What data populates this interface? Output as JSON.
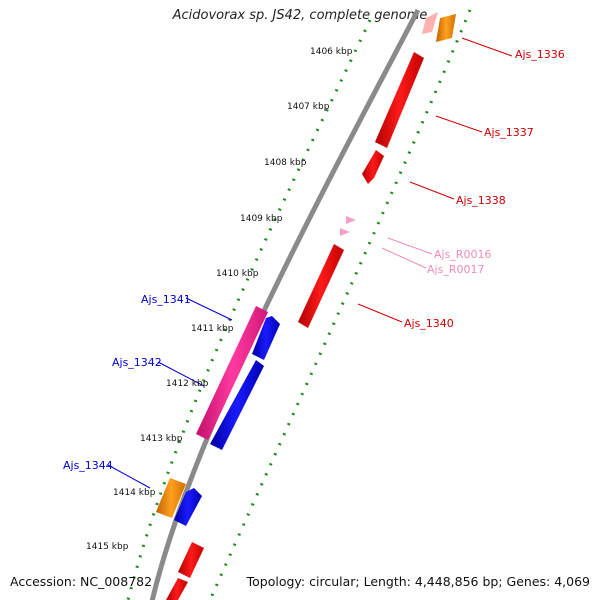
{
  "title": "Acidovorax sp. JS42, complete genome",
  "footer": {
    "accession": "Accession: NC_008782",
    "summary": "Topology: circular; Length: 4,448,856 bp; Genes: 4,069"
  },
  "colors": {
    "backbone": "#8a8a8a",
    "tick": "#1e8a1e",
    "cds_forward": "#ee0000",
    "cds_reverse": "#0000dd",
    "rna": "#f4a0c8",
    "pseudo": "#ff8c00",
    "misc_pink": "#f0208a",
    "label_forward": "#cc0000",
    "label_reverse": "#0000cc",
    "label_rna": "#f08cb8"
  },
  "scale_labels": [
    "1406 kbp",
    "1407 kbp",
    "1408 kbp",
    "1409 kbp",
    "1410 kbp",
    "1411 kbp",
    "1412 kbp",
    "1413 kbp",
    "1414 kbp",
    "1415 kbp"
  ],
  "gene_labels": {
    "ajs_1336": "Ajs_1336",
    "ajs_1337": "Ajs_1337",
    "ajs_1338": "Ajs_1338",
    "ajs_r0016": "Ajs_R0016",
    "ajs_r0017": "Ajs_R0017",
    "ajs_1340": "Ajs_1340",
    "ajs_1341": "Ajs_1341",
    "ajs_1342": "Ajs_1342",
    "ajs_1344": "Ajs_1344"
  }
}
